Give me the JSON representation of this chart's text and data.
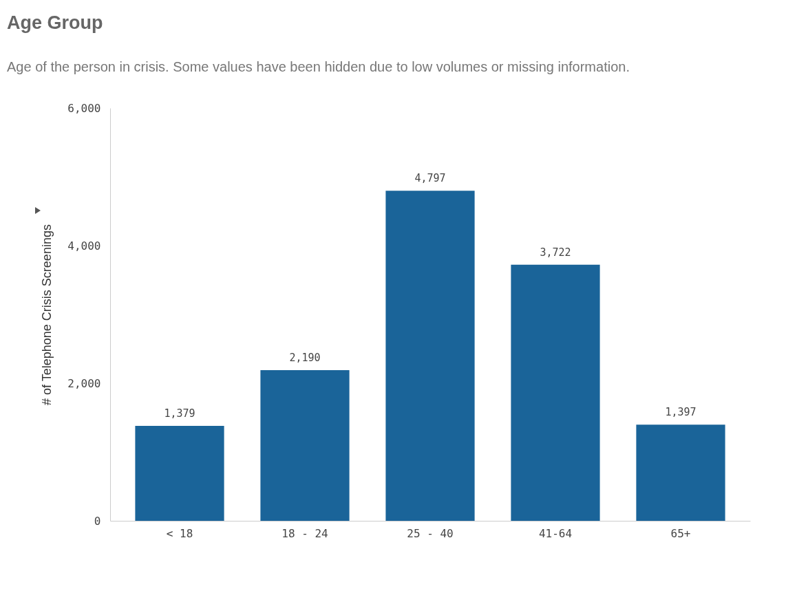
{
  "chart_data": {
    "type": "bar",
    "title": "Age Group",
    "subtitle": "Age of the person in crisis. Some values have been hidden due to low volumes or missing information.",
    "ylabel": "# of Telephone Crisis Screenings",
    "categories": [
      "< 18",
      "18 - 24",
      "25 - 40",
      "41-64",
      "65+"
    ],
    "values": [
      1379,
      2190,
      4797,
      3722,
      1397
    ],
    "color": "#1a6499",
    "ylim": [
      0,
      6000
    ],
    "yticks": [
      {
        "value": 0,
        "label": "0"
      },
      {
        "value": 2000,
        "label": "2,000"
      },
      {
        "value": 4000,
        "label": "4,000"
      },
      {
        "value": 6000,
        "label": "6,000"
      }
    ],
    "grid": false,
    "value_labels": [
      "1,379",
      "2,190",
      "4,797",
      "3,722",
      "1,397"
    ]
  }
}
